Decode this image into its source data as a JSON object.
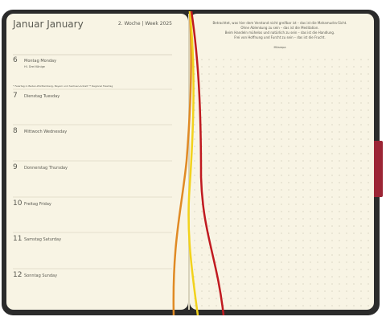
{
  "header": {
    "month": "Januar  January",
    "week": "2. Woche | Week 2025"
  },
  "note": "* Feiertag in Baden-Württemberg, Bayern und Sachsen-Anhalt  ** Regional Feiertag",
  "days": [
    {
      "number": "6",
      "label": "Montag  Monday",
      "sub": "Hl. Drei Könige"
    },
    {
      "number": "7",
      "label": "Dienstag  Tuesday"
    },
    {
      "number": "8",
      "label": "Mittwoch  Wednesday"
    },
    {
      "number": "9",
      "label": "Donnerstag  Thursday"
    },
    {
      "number": "10",
      "label": "Freitag  Friday"
    },
    {
      "number": "11",
      "label": "Samstag  Saturday"
    },
    {
      "number": "12",
      "label": "Sonntag  Sunday"
    }
  ],
  "quote": {
    "lines": [
      "Betrachtet, was hier dem Verstand nicht greifbar ist – das ist die Mahamudra-Sicht.",
      "Ohne Ablenkung zu sein – das ist die Meditation.",
      "Beim Handeln mühelos und natürlich zu sein – das ist die Handlung.",
      "Frei von Hoffnung und Furcht zu sein – das ist die Frucht."
    ],
    "author": "Milarepa"
  }
}
